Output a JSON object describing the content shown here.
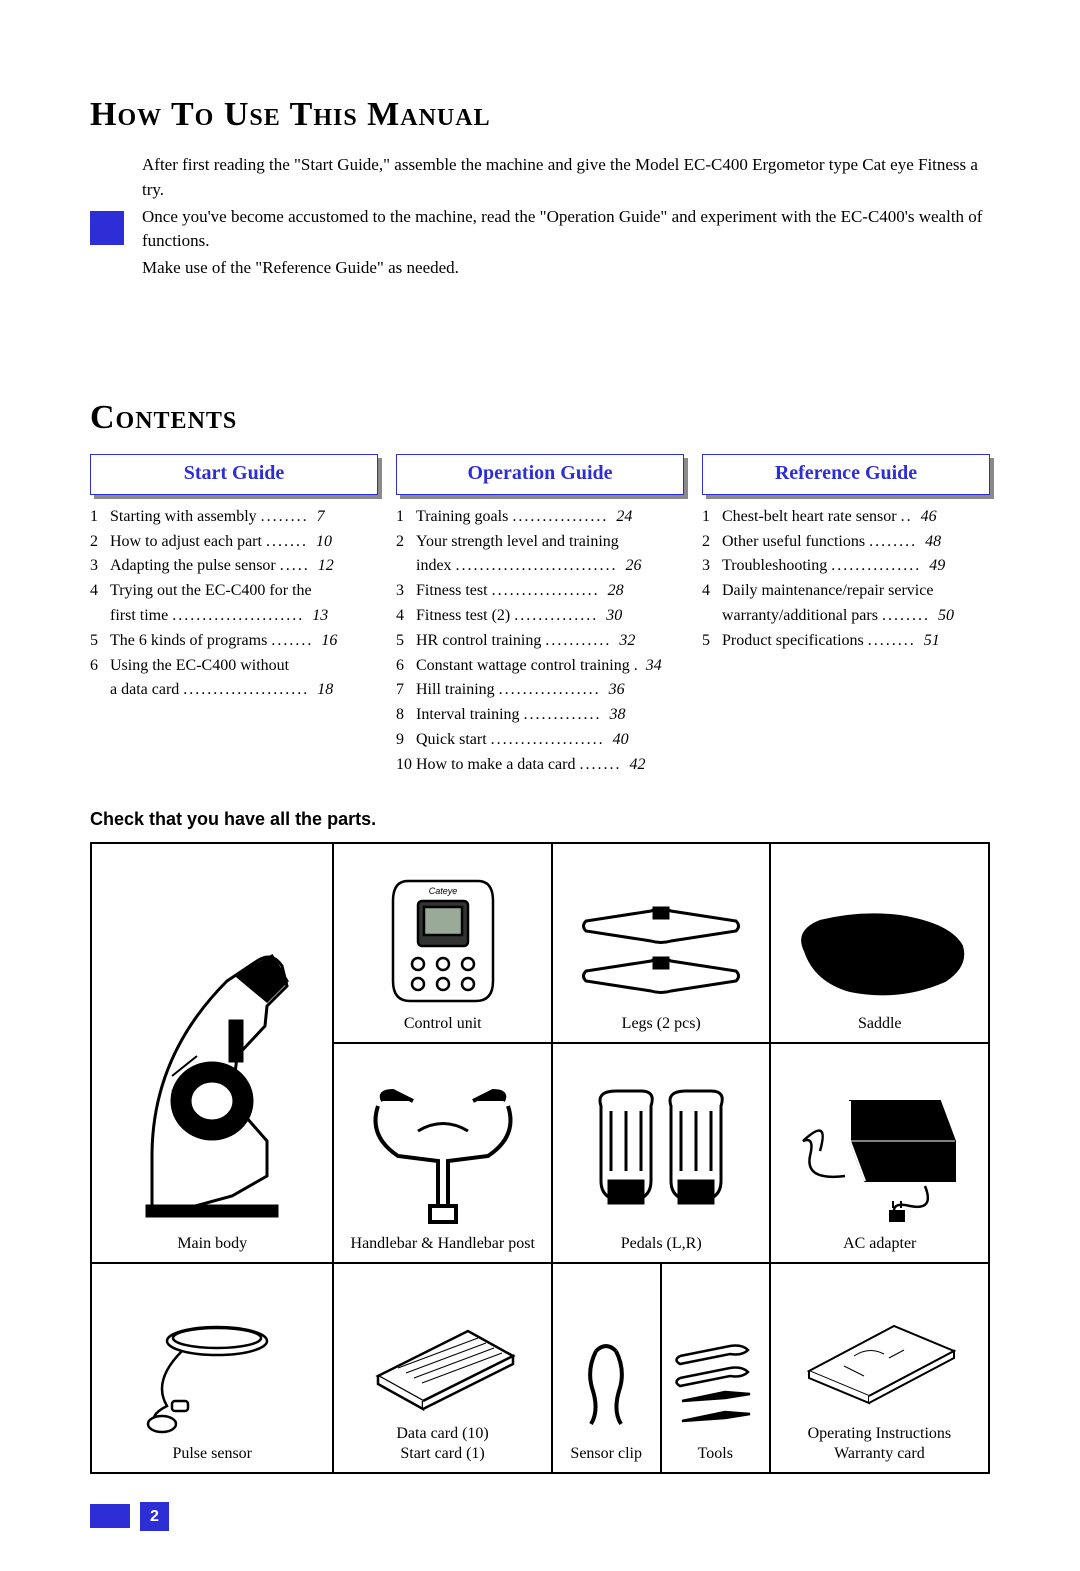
{
  "headings": {
    "howto": "How To Use This Manual",
    "contents": "Contents",
    "parts_check": "Check that you have all the parts."
  },
  "intro": {
    "p1": "After first reading the \"Start Guide,\" assemble the machine and give the Model EC-C400 Ergometor type Cat eye Fitness a try.",
    "p2": "Once you've become accustomed to the machine, read the \"Operation Guide\" and experiment with the EC-C400's wealth of functions.",
    "p3": "Make use of the \"Reference Guide\" as needed."
  },
  "accent_color": "#2e2ed6",
  "sections": {
    "start": {
      "title": "Start Guide",
      "items": [
        {
          "n": "1",
          "t": "Starting with assembly",
          "p": "7"
        },
        {
          "n": "2",
          "t": "How to adjust each part",
          "p": "10"
        },
        {
          "n": "3",
          "t": "Adapting the pulse sensor",
          "p": "12"
        },
        {
          "n": "4",
          "t": "Trying out the EC-C400 for the",
          "t2": "first time",
          "p": "13"
        },
        {
          "n": "5",
          "t": "The 6 kinds of programs",
          "p": "16"
        },
        {
          "n": "6",
          "t": "Using the EC-C400 without",
          "t2": "a data card",
          "p": "18"
        }
      ]
    },
    "operation": {
      "title": "Operation Guide",
      "items": [
        {
          "n": "1",
          "t": "Training goals",
          "p": "24"
        },
        {
          "n": "2",
          "t": "Your strength level and training",
          "t2": "index",
          "p": "26"
        },
        {
          "n": "3",
          "t": "Fitness test",
          "p": "28"
        },
        {
          "n": "4",
          "t": "Fitness test (2)",
          "p": "30"
        },
        {
          "n": "5",
          "t": "HR control training",
          "p": "32"
        },
        {
          "n": "6",
          "t": "Constant wattage control training",
          "dot": ".",
          "p": "34"
        },
        {
          "n": "7",
          "t": "Hill training",
          "p": "36"
        },
        {
          "n": "8",
          "t": "Interval training",
          "p": "38"
        },
        {
          "n": "9",
          "t": "Quick start",
          "p": "40"
        },
        {
          "n": "10",
          "t": "How to make a data card",
          "p": "42"
        }
      ]
    },
    "reference": {
      "title": "Reference Guide",
      "items": [
        {
          "n": "1",
          "t": "Chest-belt heart rate sensor",
          "p": "46"
        },
        {
          "n": "2",
          "t": "Other useful functions",
          "p": "48"
        },
        {
          "n": "3",
          "t": "Troubleshooting",
          "p": "49"
        },
        {
          "n": "4",
          "t": "Daily maintenance/repair service",
          "t2": "warranty/additional pars",
          "p": "50"
        },
        {
          "n": "5",
          "t": "Product specifications",
          "p": "51"
        }
      ]
    }
  },
  "parts": {
    "main_body": "Main body",
    "control_unit": "Control unit",
    "legs": "Legs (2 pcs)",
    "saddle": "Saddle",
    "handlebar": "Handlebar & Handlebar post",
    "pedals": "Pedals (L,R)",
    "ac_adapter": "AC adapter",
    "pulse_sensor": "Pulse sensor",
    "data_card_l1": "Data card (10)",
    "data_card_l2": "Start card (1)",
    "sensor_clip": "Sensor clip",
    "tools": "Tools",
    "instructions_l1": "Operating Instructions",
    "instructions_l2": "Warranty card"
  },
  "page_number": "2"
}
